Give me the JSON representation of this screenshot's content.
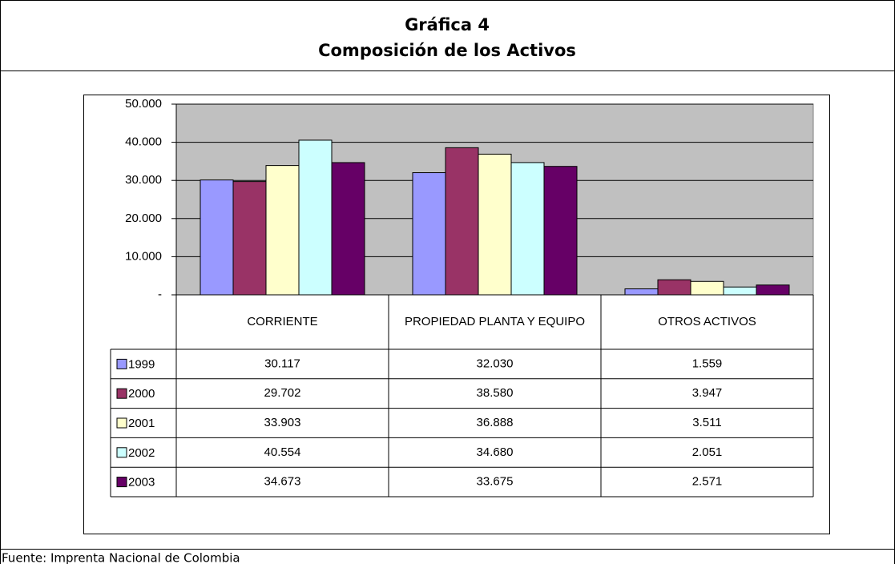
{
  "chart_data": {
    "type": "bar",
    "title": [
      "Gráfica 4",
      "Composición de los Activos"
    ],
    "source": "Fuente: Imprenta Nacional de Colombia",
    "categories": [
      "CORRIENTE",
      "PROPIEDAD PLANTA Y EQUIPO",
      "OTROS ACTIVOS"
    ],
    "series": [
      {
        "name": "1999",
        "color": "#9999ff",
        "values": [
          30117,
          32030,
          1559
        ],
        "value_labels": [
          "30.117",
          "32.030",
          "1.559"
        ]
      },
      {
        "name": "2000",
        "color": "#993366",
        "values": [
          29702,
          38580,
          3947
        ],
        "value_labels": [
          "29.702",
          "38.580",
          "3.947"
        ]
      },
      {
        "name": "2001",
        "color": "#ffffcc",
        "values": [
          33903,
          36888,
          3511
        ],
        "value_labels": [
          "33.903",
          "36.888",
          "3.511"
        ]
      },
      {
        "name": "2002",
        "color": "#ccffff",
        "values": [
          40554,
          34680,
          2051
        ],
        "value_labels": [
          "40.554",
          "34.680",
          "2.051"
        ]
      },
      {
        "name": "2003",
        "color": "#660066",
        "values": [
          34673,
          33675,
          2571
        ],
        "value_labels": [
          "34.673",
          "33.675",
          "2.571"
        ]
      }
    ],
    "ylim": [
      0,
      50000
    ],
    "yticks": [
      {
        "value": 0,
        "label": "-"
      },
      {
        "value": 10000,
        "label": "10.000"
      },
      {
        "value": 20000,
        "label": "20.000"
      },
      {
        "value": 30000,
        "label": "30.000"
      },
      {
        "value": 40000,
        "label": "40.000"
      },
      {
        "value": 50000,
        "label": "50.000"
      }
    ],
    "grid": true,
    "plot_background": "#c0c0c0"
  }
}
